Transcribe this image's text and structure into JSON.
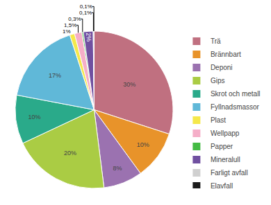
{
  "chart_data": {
    "type": "pie",
    "categories": [
      "Trä",
      "Brännbart",
      "Deponi",
      "Gips",
      "Skrot och metall",
      "Fyllnadsmassor",
      "Plast",
      "Wellpapp",
      "Papper",
      "Mineralull",
      "Farligt avfall",
      "Elavfall"
    ],
    "values": [
      30,
      10,
      8,
      20,
      10,
      17,
      1,
      1.5,
      0.3,
      2,
      0.1,
      0.1
    ],
    "value_labels": [
      "30%",
      "10%",
      "8%",
      "20%",
      "10%",
      "17%",
      "1%",
      "1,5%",
      "0,3%",
      "2%",
      "0,1%",
      "0,1%"
    ],
    "colors": [
      "#c07080",
      "#e8932a",
      "#9b72b0",
      "#aacc44",
      "#2aaa8a",
      "#60b8d8",
      "#f5e84a",
      "#f5aec8",
      "#44bb44",
      "#7050a0",
      "#d0d0d0",
      "#1a1a1a"
    ],
    "data_labels": true,
    "legend": "right"
  }
}
